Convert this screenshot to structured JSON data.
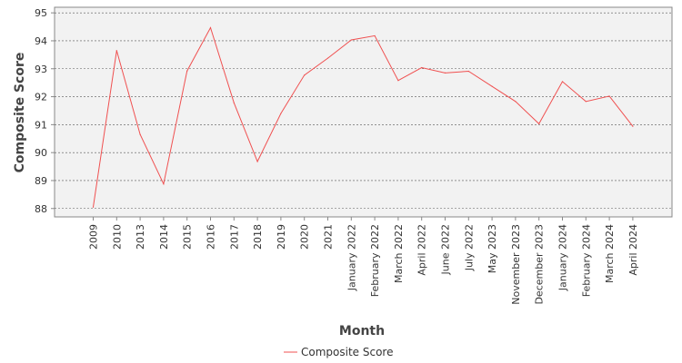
{
  "chart_data": {
    "type": "line",
    "title": "",
    "xlabel": "Month",
    "ylabel": "Composite Score",
    "categories": [
      "2009",
      "2010",
      "2013",
      "2014",
      "2015",
      "2016",
      "2017",
      "2018",
      "2019",
      "2020",
      "2021",
      "January 2022",
      "February 2022",
      "March 2022",
      "April 2022",
      "June 2022",
      "July 2022",
      "May 2023",
      "November 2023",
      "December 2023",
      "January 2024",
      "February 2024",
      "March 2024",
      "April 2024"
    ],
    "series": [
      {
        "name": "Composite Score",
        "color": "#f05050",
        "values": [
          88.05,
          93.65,
          90.65,
          88.88,
          92.92,
          94.47,
          91.78,
          89.68,
          91.4,
          92.77,
          93.38,
          94.03,
          94.18,
          92.58,
          93.04,
          92.85,
          92.91,
          92.37,
          91.83,
          91.03,
          92.54,
          91.83,
          92.02,
          90.94
        ]
      }
    ],
    "ylim": [
      87.7,
      95.2
    ],
    "yticks": [
      88,
      89,
      90,
      91,
      92,
      93,
      94,
      95
    ],
    "grid": true,
    "legend": "bottom-center"
  }
}
